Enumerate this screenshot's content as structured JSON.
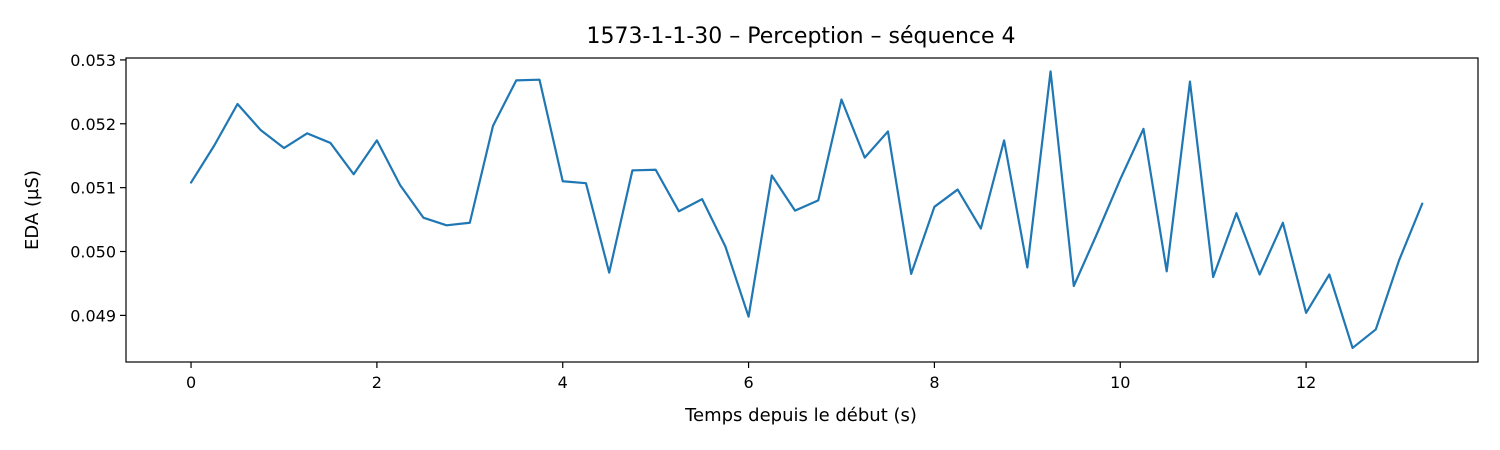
{
  "chart_data": {
    "type": "line",
    "title": "1573-1-1-30 – Perception – séquence 4",
    "xlabel": "Temps depuis le début (s)",
    "ylabel": "EDA (µS)",
    "xlim": [
      -0.7,
      13.85
    ],
    "ylim": [
      0.04827,
      0.05303
    ],
    "x_ticks": [
      0,
      2,
      4,
      6,
      8,
      10,
      12
    ],
    "x_tick_labels": [
      "0",
      "2",
      "4",
      "6",
      "8",
      "10",
      "12"
    ],
    "y_ticks": [
      0.049,
      0.05,
      0.051,
      0.052,
      0.053
    ],
    "y_tick_labels": [
      "0.049",
      "0.050",
      "0.051",
      "0.052",
      "0.053"
    ],
    "grid": false,
    "series": [
      {
        "color": "#1f77b4",
        "x": [
          0,
          0.25,
          0.5,
          0.75,
          1.0,
          1.25,
          1.5,
          1.75,
          2.0,
          2.25,
          2.5,
          2.75,
          3.0,
          3.25,
          3.5,
          3.75,
          4.0,
          4.25,
          4.5,
          4.75,
          5.0,
          5.25,
          5.5,
          5.75,
          6.0,
          6.25,
          6.5,
          6.75,
          7.0,
          7.25,
          7.5,
          7.75,
          8.0,
          8.25,
          8.5,
          8.75,
          9.0,
          9.25,
          9.5,
          9.75,
          10.0,
          10.25,
          10.5,
          10.75,
          11.0,
          11.25,
          11.5,
          11.75,
          12.0,
          12.25,
          12.5,
          12.75,
          13.0,
          13.25
        ],
        "y": [
          0.05108,
          0.05166,
          0.05231,
          0.0519,
          0.05162,
          0.05185,
          0.0517,
          0.05121,
          0.05174,
          0.05104,
          0.05053,
          0.05041,
          0.05045,
          0.05197,
          0.05268,
          0.05269,
          0.0511,
          0.05107,
          0.04967,
          0.05127,
          0.05128,
          0.05063,
          0.05082,
          0.05008,
          0.04898,
          0.05119,
          0.05064,
          0.0508,
          0.05238,
          0.05147,
          0.05188,
          0.04965,
          0.0507,
          0.05097,
          0.05036,
          0.05174,
          0.04975,
          0.05282,
          0.04946,
          0.05028,
          0.05113,
          0.05192,
          0.04969,
          0.05266,
          0.0496,
          0.0506,
          0.04964,
          0.05045,
          0.04904,
          0.04964,
          0.04849,
          0.04878,
          0.04986,
          0.05075
        ]
      }
    ]
  }
}
